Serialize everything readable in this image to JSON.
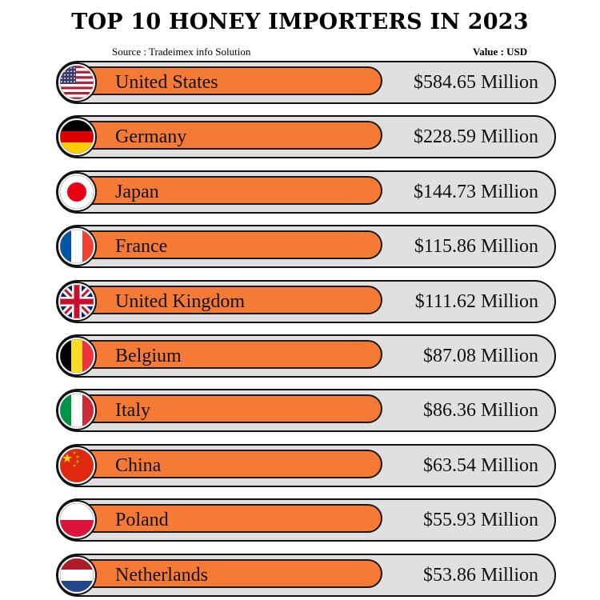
{
  "header": {
    "title": "TOP 10 HONEY IMPORTERS IN 2023",
    "source": "Source : Tradeimex info Solution",
    "unit": "Value : USD"
  },
  "colors": {
    "bar": "#f47a35",
    "track": "#e0e0e0",
    "outline": "#111111"
  },
  "chart_data": {
    "type": "bar",
    "title": "TOP 10 HONEY IMPORTERS IN 2023",
    "categories": [
      "United States",
      "Germany",
      "Japan",
      "France",
      "United Kingdom",
      "Belgium",
      "Italy",
      "China",
      "Poland",
      "Netherlands"
    ],
    "values": [
      584.65,
      228.59,
      144.73,
      115.86,
      111.62,
      87.08,
      86.36,
      63.54,
      55.93,
      53.86
    ],
    "value_labels": [
      "$584.65 Million",
      "$228.59 Million",
      "$144.73 Million",
      "$115.86 Million",
      "$111.62 Million",
      "$87.08 Million",
      "$86.36 Million",
      "$63.54 Million",
      "$55.93 Million",
      "$53.86 Million"
    ],
    "flags": [
      "us-flag-icon",
      "germany-flag-icon",
      "japan-flag-icon",
      "france-flag-icon",
      "uk-flag-icon",
      "belgium-flag-icon",
      "italy-flag-icon",
      "china-flag-icon",
      "poland-flag-icon",
      "netherlands-flag-icon"
    ]
  }
}
